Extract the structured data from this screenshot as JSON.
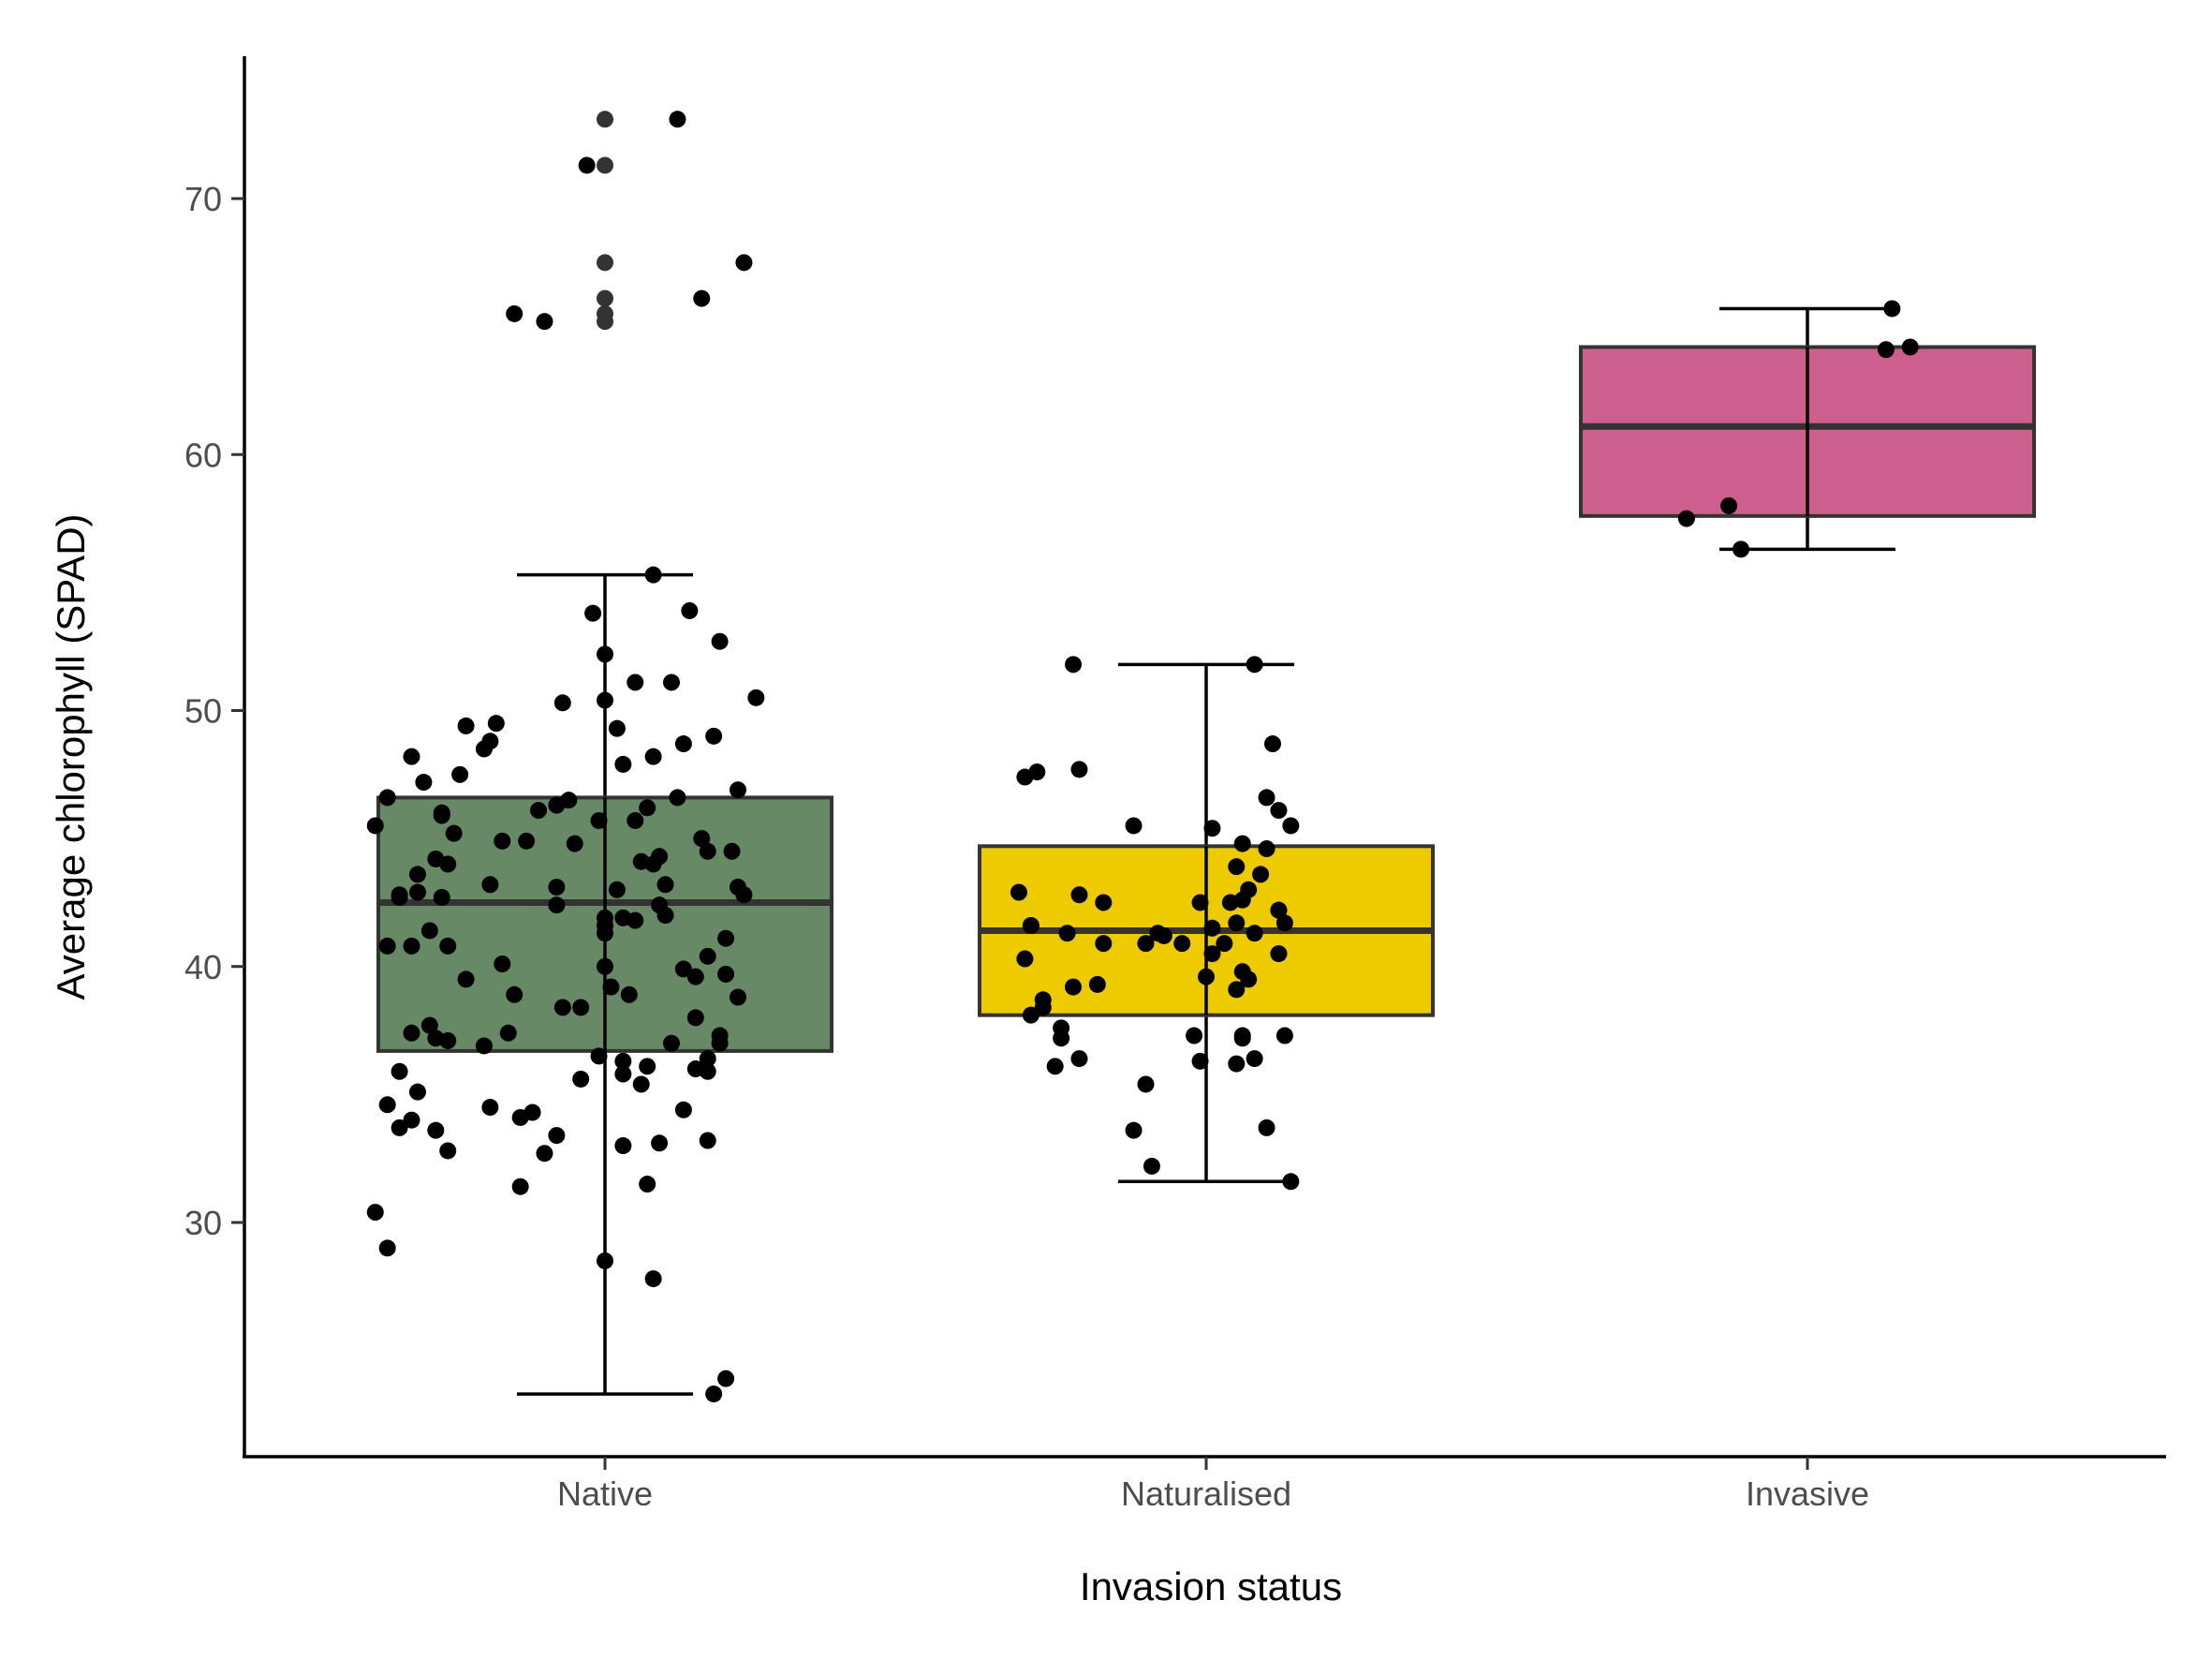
{
  "chart_data": {
    "type": "box",
    "xlabel": "Invasion status",
    "ylabel": "Average chlorophyll (SPAD)",
    "categories": [
      "Native",
      "Naturalised",
      "Invasive"
    ],
    "ylim": [
      21,
      76
    ],
    "yticks": [
      30,
      40,
      50,
      60,
      70
    ],
    "grid": false,
    "legend": "none",
    "boxes": [
      {
        "category": "Native",
        "color": "#678966",
        "min": 23.3,
        "q1": 36.7,
        "median": 42.5,
        "q3": 46.6,
        "max": 55.3
      },
      {
        "category": "Naturalised",
        "color": "#eecb00",
        "min": 31.6,
        "q1": 38.1,
        "median": 41.4,
        "q3": 44.7,
        "max": 51.8
      },
      {
        "category": "Invasive",
        "color": "#cc5f8e",
        "min": 56.3,
        "q1": 57.6,
        "median": 61.1,
        "q3": 64.2,
        "max": 65.7
      }
    ],
    "outliers": [
      {
        "category": "Native",
        "values": [
          73.1,
          71.3,
          67.5,
          66.1,
          65.5,
          65.2
        ]
      }
    ],
    "points": [
      {
        "category": "Native",
        "x": [
          1.12,
          0.97,
          1.23,
          1.16,
          0.9,
          0.85,
          1.08,
          0.98,
          1.14,
          1.19,
          1.0,
          1.11,
          1.05,
          1.25,
          0.93,
          1.0,
          0.82,
          0.77,
          1.02,
          1.18,
          0.81,
          1.13,
          0.8,
          1.08,
          0.68,
          1.03,
          0.76,
          0.7,
          0.64,
          1.12,
          0.94,
          0.92,
          1.07,
          0.89,
          0.73,
          0.73,
          0.99,
          1.05,
          0.62,
          0.75,
          0.83,
          0.87,
          1.17,
          1.21,
          1.09,
          0.72,
          0.74,
          0.69,
          1.1,
          0.81,
          0.92,
          1.02,
          1.23,
          0.66,
          0.92,
          1.1,
          1.05,
          1.0,
          0.71,
          1.2,
          0.74,
          0.64,
          0.83,
          1.0,
          1.13,
          1.2,
          1.15,
          0.77,
          1.01,
          0.85,
          1.04,
          1.22,
          0.93,
          0.96,
          0.71,
          0.68,
          0.84,
          1.19,
          0.72,
          0.74,
          1.19,
          1.11,
          0.8,
          0.99,
          1.17,
          1.03,
          1.07,
          1.15,
          0.66,
          1.17,
          1.03,
          0.96,
          0.69,
          0.64,
          0.81,
          1.13,
          0.88,
          0.86,
          0.68,
          0.72,
          0.92,
          1.17,
          1.09,
          1.03,
          0.74,
          0.9,
          1.07,
          0.86,
          0.62,
          0.64,
          1.0,
          1.08,
          1.2,
          1.18,
          0.73,
          0.69,
          0.66,
          1.0,
          0.68,
          1.08,
          1.22,
          1.15,
          1.09,
          0.95,
          1.16,
          1.03,
          1.0,
          1.06,
          1.17,
          1.22,
          0.66,
          1.06
        ],
        "y": [
          73.1,
          71.3,
          67.5,
          66.1,
          65.2,
          65.5,
          55.3,
          53.8,
          53.9,
          52.7,
          52.2,
          51.1,
          51.1,
          50.5,
          50.3,
          50.4,
          49.5,
          49.4,
          49.3,
          49.0,
          48.8,
          48.7,
          48.5,
          48.2,
          48.2,
          47.9,
          47.5,
          47.2,
          46.6,
          46.6,
          46.5,
          46.3,
          46.2,
          46.1,
          46.0,
          45.9,
          45.7,
          45.7,
          45.5,
          45.2,
          44.9,
          44.9,
          44.5,
          44.5,
          44.3,
          44.2,
          44.0,
          43.6,
          43.2,
          43.2,
          43.1,
          43.0,
          42.8,
          42.7,
          42.4,
          42.0,
          41.8,
          41.6,
          41.4,
          41.1,
          40.8,
          40.8,
          40.1,
          40.0,
          39.9,
          39.7,
          39.6,
          39.5,
          39.2,
          38.9,
          38.9,
          38.8,
          38.4,
          38.4,
          37.7,
          37.4,
          37.4,
          37.3,
          37.2,
          37.1,
          37.0,
          37.0,
          36.9,
          36.5,
          36.4,
          36.3,
          36.1,
          36.0,
          35.9,
          35.9,
          35.8,
          35.6,
          35.1,
          34.6,
          34.5,
          34.4,
          34.3,
          34.1,
          34.0,
          33.6,
          33.4,
          33.2,
          33.1,
          33.0,
          32.8,
          32.7,
          31.5,
          31.4,
          30.4,
          29.0,
          28.5,
          27.8,
          23.9,
          23.3,
          42.7,
          42.9,
          42.8,
          41.9,
          40.8,
          44.0,
          43.1,
          38.0,
          42.4,
          44.8,
          45.0,
          41.9,
          41.3,
          44.1,
          40.4,
          46.9,
          33.7,
          35.4
        ]
      },
      {
        "category": "Naturalised",
        "x": [
          0.78,
          1.08,
          1.11,
          0.7,
          0.79,
          0.72,
          1.12,
          0.88,
          1.14,
          1.06,
          1.1,
          1.09,
          1.05,
          1.07,
          1.12,
          0.79,
          1.04,
          1.06,
          0.69,
          0.99,
          1.05,
          0.92,
          0.83,
          0.71,
          0.96,
          0.82,
          0.7,
          0.78,
          1.0,
          1.07,
          0.73,
          0.76,
          1.06,
          0.76,
          0.98,
          1.06,
          0.79,
          0.99,
          0.75,
          1.05,
          0.73,
          1.01,
          1.12,
          1.03,
          0.71,
          0.71,
          0.91,
          1.14,
          0.88,
          1.1,
          0.9,
          0.9,
          1.08,
          0.83,
          1.01,
          1.1,
          1.13,
          0.93,
          1.06,
          1.05,
          1.12,
          1.13,
          1.01,
          0.77,
          1.08
        ],
        "y": [
          51.8,
          51.8,
          48.7,
          47.4,
          47.7,
          47.6,
          46.1,
          45.5,
          45.5,
          44.8,
          44.6,
          43.6,
          43.9,
          43.0,
          42.2,
          42.8,
          42.5,
          42.6,
          42.9,
          42.5,
          41.7,
          41.3,
          40.9,
          41.6,
          40.9,
          39.3,
          40.3,
          39.2,
          39.6,
          39.5,
          38.4,
          37.6,
          37.3,
          37.2,
          37.3,
          37.2,
          36.4,
          36.3,
          36.1,
          36.2,
          38.7,
          40.5,
          40.5,
          40.9,
          38.1,
          41.6,
          32.2,
          31.6,
          33.6,
          33.7,
          35.4,
          40.9,
          41.3,
          42.5,
          45.4,
          46.6,
          41.7,
          41.2,
          39.8,
          39.1,
          42.2,
          37.3,
          41.5,
          41.3,
          36.4
        ],
        "y_note": ""
      },
      {
        "category": "Invasive",
        "x": [
          1.14,
          1.13,
          1.17,
          0.8,
          0.87,
          0.89
        ],
        "y": [
          65.7,
          64.1,
          64.2,
          57.5,
          58.0,
          56.3
        ]
      }
    ]
  }
}
